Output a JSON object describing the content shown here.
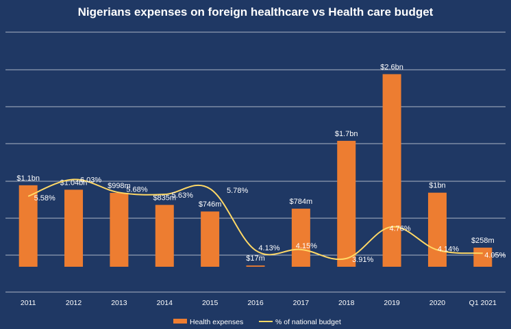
{
  "chart_data": {
    "type": "bar",
    "title": "Nigerians expenses on foreign healthcare vs Health care budget",
    "categories": [
      "2011",
      "2012",
      "2013",
      "2014",
      "2015",
      "2016",
      "2017",
      "2018",
      "2019",
      "2020",
      "Q1 2021"
    ],
    "series": [
      {
        "name": "Health expenses",
        "type": "bar",
        "values": [
          1.1,
          1.04,
          0.998,
          0.835,
          0.746,
          0.017,
          0.784,
          1.7,
          2.6,
          1.0,
          0.258
        ],
        "labels": [
          "$1.1bn",
          "$1.04bn",
          "$998m",
          "$835m",
          "$746m",
          "$17m",
          "$784m",
          "$1.7bn",
          "$2.6bn",
          "$1bn",
          "$258m"
        ],
        "color": "#ed7d31"
      },
      {
        "name": "% of national budget",
        "type": "line",
        "values": [
          5.58,
          6.03,
          5.68,
          5.63,
          5.78,
          4.13,
          4.15,
          3.91,
          4.76,
          4.14,
          4.05
        ],
        "labels": [
          "5.58%",
          "6.03%",
          "5.68%",
          "5.63%",
          "5.78%",
          "4.13%",
          "4.15%",
          "3.91%",
          "4.76%",
          "4.14%",
          "4.05%"
        ],
        "color": "#ffd966",
        "smooth": true
      }
    ],
    "ylim": [
      0,
      3.0
    ],
    "y2lim": [
      3.0,
      7.0
    ],
    "grid": true,
    "legend": "bottom-center",
    "background": "#1f3864"
  }
}
